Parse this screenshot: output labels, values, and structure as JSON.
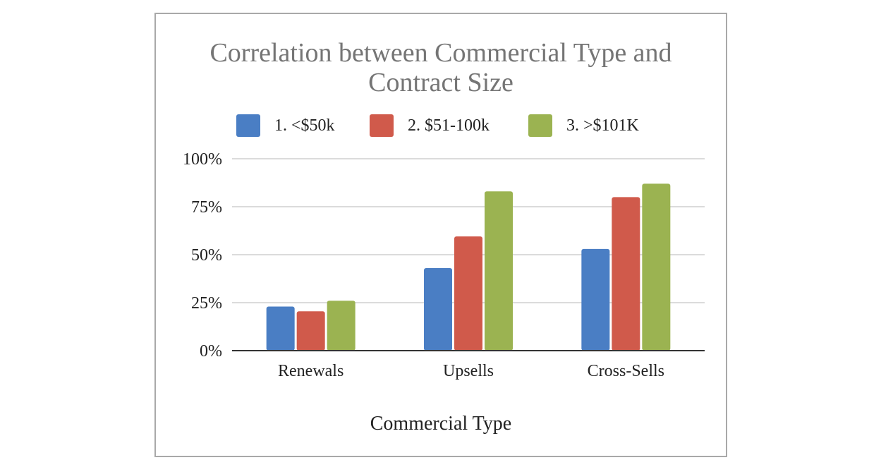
{
  "chart_data": {
    "type": "bar",
    "title_lines": [
      "Correlation between Commercial Type and",
      "Contract Size"
    ],
    "xlabel": "Commercial Type",
    "ylabel": "",
    "categories": [
      "Renewals",
      "Upsells",
      "Cross-Sells"
    ],
    "series": [
      {
        "name": "1. <$50k",
        "color": "#4a7ec4",
        "values": [
          23,
          43,
          53
        ]
      },
      {
        "name": "2. $51-100k",
        "color": "#d05a4b",
        "values": [
          20.5,
          59.5,
          80
        ]
      },
      {
        "name": "3. >$101K",
        "color": "#9bb351",
        "values": [
          26,
          83,
          87
        ]
      }
    ],
    "ylim": [
      0,
      100
    ],
    "yticks": [
      0,
      25,
      50,
      75,
      100
    ],
    "ytick_labels": [
      "0%",
      "25%",
      "50%",
      "75%",
      "100%"
    ],
    "grid": true,
    "legend_position": "top"
  }
}
